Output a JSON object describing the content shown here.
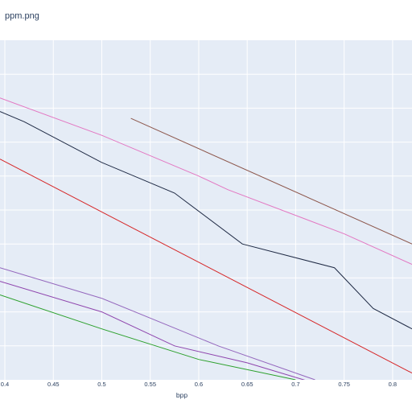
{
  "page": {
    "title_visible": "ppm.png"
  },
  "chart_data": {
    "type": "line",
    "title": "ppm.png",
    "xlabel": "bpp",
    "ylabel": "",
    "xlim": [
      0.395,
      0.82
    ],
    "ylim": [
      0,
      100
    ],
    "grid": true,
    "legend": "none",
    "x_ticks": [
      "0.4",
      "0.45",
      "0.5",
      "0.55",
      "0.6",
      "0.65",
      "0.7",
      "0.75",
      "0.8"
    ],
    "series": [
      {
        "color": "#8c564b",
        "points": [
          [
            0.53,
            77
          ],
          [
            0.82,
            40
          ]
        ]
      },
      {
        "color": "#e377c2",
        "points": [
          [
            0.395,
            83
          ],
          [
            0.5,
            72
          ],
          [
            0.6,
            60
          ],
          [
            0.63,
            56
          ],
          [
            0.75,
            43
          ],
          [
            0.82,
            34
          ]
        ]
      },
      {
        "color": "#1f2a44",
        "points": [
          [
            0.395,
            79
          ],
          [
            0.42,
            76
          ],
          [
            0.5,
            64
          ],
          [
            0.575,
            55
          ],
          [
            0.645,
            40
          ],
          [
            0.74,
            33
          ],
          [
            0.78,
            21
          ],
          [
            0.82,
            15
          ]
        ]
      },
      {
        "color": "#d62728",
        "points": [
          [
            0.395,
            65
          ],
          [
            0.82,
            2
          ]
        ]
      },
      {
        "color": "#9467bd",
        "points": [
          [
            0.395,
            33
          ],
          [
            0.5,
            24
          ],
          [
            0.62,
            10
          ],
          [
            0.72,
            0
          ]
        ]
      },
      {
        "color": "#8e44ad",
        "points": [
          [
            0.395,
            29
          ],
          [
            0.5,
            20
          ],
          [
            0.575,
            10
          ],
          [
            0.65,
            5
          ],
          [
            0.72,
            -1
          ]
        ]
      },
      {
        "color": "#2ca02c",
        "points": [
          [
            0.395,
            25
          ],
          [
            0.5,
            15
          ],
          [
            0.6,
            6
          ],
          [
            0.7,
            0
          ]
        ]
      }
    ]
  }
}
